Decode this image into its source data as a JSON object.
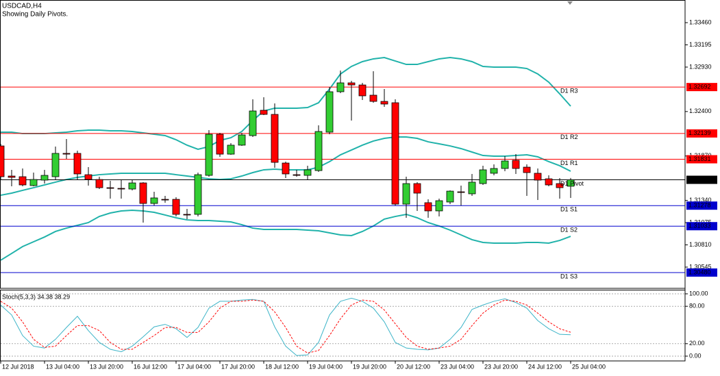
{
  "chart_data": [
    {
      "type": "candlestick",
      "title": "USDCAD,H4",
      "subtitle": "Showing Daily Pivots.",
      "categories": [
        "12 Jul 2018",
        null,
        null,
        null,
        "13 Jul 04:00",
        null,
        null,
        null,
        "13 Jul 20:00",
        null,
        null,
        null,
        "16 Jul 12:00",
        null,
        null,
        null,
        "17 Jul 04:00",
        null,
        null,
        null,
        "17 Jul 20:00",
        null,
        null,
        null,
        "18 Jul 12:00",
        null,
        null,
        null,
        "19 Jul 04:00",
        null,
        null,
        null,
        "19 Jul 20:00",
        null,
        null,
        null,
        "20 Jul 12:00",
        null,
        null,
        null,
        "23 Jul 04:00",
        null,
        null,
        null,
        "23 Jul 20:00",
        null,
        null,
        null,
        "24 Jul 12:00",
        null,
        null,
        null,
        "25 Jul 04:00"
      ],
      "open": [
        1.3199,
        1.31631,
        1.31623,
        1.31517,
        1.31582,
        1.31623,
        1.31901,
        1.31901,
        1.31647,
        1.3159,
        1.31492,
        1.31484,
        1.31476,
        1.31549,
        1.31304,
        1.31353,
        1.31353,
        1.31174,
        1.31174,
        1.31639,
        1.32129,
        1.31892,
        1.31999,
        1.32113,
        1.32415,
        1.32366,
        1.31786,
        1.31647,
        1.31639,
        1.31696,
        1.32154,
        1.32636,
        1.32742,
        1.32717,
        1.32595,
        1.32521,
        1.32505,
        1.31296,
        1.31541,
        1.31313,
        1.31215,
        1.31321,
        1.31443,
        1.31419,
        1.31541,
        1.31664,
        1.31721,
        1.31819,
        1.31737,
        1.31664,
        1.31598,
        1.31541,
        1.31509
      ],
      "high": [
        1.32015,
        1.31705,
        1.31721,
        1.31672,
        1.31705,
        1.31982,
        1.32072,
        1.31933,
        1.31737,
        1.31623,
        1.31574,
        1.3159,
        1.3159,
        1.31558,
        1.31443,
        1.31394,
        1.31378,
        1.31239,
        1.31672,
        1.32178,
        1.32146,
        1.32023,
        1.32146,
        1.32546,
        1.3257,
        1.32497,
        1.31803,
        1.31705,
        1.31754,
        1.32235,
        1.32693,
        1.32889,
        1.32766,
        1.32742,
        1.32881,
        1.32668,
        1.32546,
        1.31623,
        1.31558,
        1.31353,
        1.31362,
        1.3146,
        1.31517,
        1.31656,
        1.31754,
        1.3177,
        1.31868,
        1.31892,
        1.3177,
        1.31721,
        1.31639,
        1.31607,
        1.31608
      ],
      "low": [
        1.3159,
        1.31509,
        1.31509,
        1.31509,
        1.31541,
        1.3159,
        1.31835,
        1.3159,
        1.31517,
        1.31476,
        1.31362,
        1.31362,
        1.3146,
        1.31076,
        1.3128,
        1.31313,
        1.31149,
        1.31117,
        1.31149,
        1.31623,
        1.3186,
        1.31884,
        1.3199,
        1.32097,
        1.32358,
        1.31729,
        1.31607,
        1.31623,
        1.3159,
        1.3168,
        1.32129,
        1.32619,
        1.32293,
        1.32538,
        1.32505,
        1.32456,
        1.3128,
        1.31133,
        1.31215,
        1.31133,
        1.31149,
        1.31296,
        1.3128,
        1.31394,
        1.31525,
        1.31639,
        1.31688,
        1.31656,
        1.31394,
        1.31345,
        1.31509,
        1.31362,
        1.3137
      ],
      "close": [
        1.31623,
        1.31615,
        1.31525,
        1.3159,
        1.31639,
        1.31901,
        1.31892,
        1.31656,
        1.3159,
        1.31492,
        1.31484,
        1.31476,
        1.31549,
        1.31304,
        1.3137,
        1.31345,
        1.31174,
        1.31166,
        1.31647,
        1.32129,
        1.31892,
        1.31999,
        1.32121,
        1.32407,
        1.32366,
        1.31794,
        1.31656,
        1.31639,
        1.31705,
        1.32162,
        1.32636,
        1.32742,
        1.32717,
        1.32587,
        1.32521,
        1.32489,
        1.31296,
        1.31541,
        1.31427,
        1.31215,
        1.31337,
        1.31451,
        1.31435,
        1.31558,
        1.31705,
        1.31721,
        1.31811,
        1.31721,
        1.31672,
        1.31582,
        1.31525,
        1.31492,
        1.31586
      ],
      "up_color": "#32cd32",
      "down_color": "#ff0000",
      "series": [
        {
          "color": "#20b2aa",
          "values": [
            1.32154,
            1.32154,
            1.32137,
            1.32137,
            1.32137,
            1.32146,
            1.32154,
            1.3217,
            1.32178,
            1.32178,
            1.3217,
            1.3217,
            1.32162,
            1.32146,
            1.32129,
            1.32113,
            1.32064,
            1.31999,
            1.3195,
            1.31982,
            1.32056,
            1.32088,
            1.32162,
            1.32293,
            1.32407,
            1.3244,
            1.3244,
            1.3244,
            1.32448,
            1.32505,
            1.32668,
            1.32848,
            1.32938,
            1.32995,
            1.33028,
            1.33044,
            1.33003,
            1.32962,
            1.32962,
            1.32995,
            1.33028,
            1.33044,
            1.33028,
            1.32995,
            1.32938,
            1.3293,
            1.3293,
            1.3293,
            1.32913,
            1.32848,
            1.3275,
            1.32611,
            1.32464
          ]
        },
        {
          "color": "#20b2aa",
          "values": [
            1.31402,
            1.31427,
            1.3146,
            1.31492,
            1.31525,
            1.31558,
            1.3159,
            1.31615,
            1.31631,
            1.31647,
            1.31656,
            1.31664,
            1.31664,
            1.31664,
            1.31664,
            1.31664,
            1.31647,
            1.31631,
            1.31615,
            1.31598,
            1.3159,
            1.31598,
            1.31631,
            1.31672,
            1.31705,
            1.31713,
            1.31705,
            1.31705,
            1.31705,
            1.31737,
            1.31803,
            1.31884,
            1.31941,
            1.31999,
            1.32048,
            1.3208,
            1.32097,
            1.32097,
            1.3208,
            1.32039,
            1.32015,
            1.3199,
            1.31958,
            1.31917,
            1.31876,
            1.31868,
            1.31868,
            1.31876,
            1.31884,
            1.3186,
            1.31803,
            1.31754,
            1.31688
          ]
        },
        {
          "color": "#20b2aa",
          "values": [
            1.30627,
            1.30708,
            1.3079,
            1.30847,
            1.30904,
            1.3097,
            1.3101,
            1.31043,
            1.31076,
            1.31149,
            1.3119,
            1.31215,
            1.31223,
            1.31215,
            1.31198,
            1.31166,
            1.31133,
            1.31108,
            1.311,
            1.311,
            1.31092,
            1.31084,
            1.31051,
            1.3101,
            1.30994,
            1.30994,
            1.30994,
            1.30994,
            1.30986,
            1.30978,
            1.30953,
            1.30929,
            1.30921,
            1.3097,
            1.31035,
            1.31117,
            1.31149,
            1.31174,
            1.31133,
            1.31076,
            1.31035,
            1.30986,
            1.30929,
            1.30872,
            1.30839,
            1.30831,
            1.30831,
            1.30831,
            1.30839,
            1.30839,
            1.30831,
            1.30863,
            1.30912
          ]
        }
      ],
      "levels": [
        {
          "name": "D1 R3",
          "value": 1.32692,
          "price_label": "1.32692",
          "color": "#ff0000"
        },
        {
          "name": "D1 R2",
          "value": 1.32139,
          "price_label": "1.32139",
          "color": "#ff0000"
        },
        {
          "name": "D1 R1",
          "value": 1.31831,
          "price_label": "1.31831",
          "color": "#ff0000"
        },
        {
          "name": "D1 Pivot",
          "value": 1.31586,
          "price_label": "1.31586",
          "color": "#000000"
        },
        {
          "name": "D1 S1",
          "value": 1.31278,
          "price_label": "1.31278",
          "color": "#0000cd"
        },
        {
          "name": "D1 S2",
          "value": 1.31033,
          "price_label": "1.31033",
          "color": "#0000cd"
        },
        {
          "name": "D1 S3",
          "value": 1.3048,
          "price_label": "1.30480",
          "color": "#0000cd"
        }
      ],
      "ylim": [
        1.303,
        1.3373
      ],
      "yticks": [
        {
          "value": 1.3346,
          "label": "1.33460"
        },
        {
          "value": 1.33195,
          "label": "1.33195"
        },
        {
          "value": 1.3293,
          "label": "1.32930"
        },
        {
          "value": 1.324,
          "label": "1.32400"
        },
        {
          "value": 1.3187,
          "label": "1.31870"
        },
        {
          "value": 1.3134,
          "label": "1.31340"
        },
        {
          "value": 1.31075,
          "label": "1.31075"
        },
        {
          "value": 1.3081,
          "label": "1.30810"
        },
        {
          "value": 1.30545,
          "label": "1.30545"
        }
      ]
    },
    {
      "type": "line",
      "title": "Stoch(5,3,3) 34.38 38.29",
      "series": [
        {
          "color": "#3cb4c8",
          "style": "solid",
          "values": [
            82,
            66,
            33,
            16,
            13,
            27,
            46,
            64,
            41,
            22,
            11,
            7,
            16,
            31,
            47,
            51,
            44,
            30,
            46,
            77,
            88,
            88,
            90,
            91,
            88,
            47,
            16,
            1,
            2,
            22,
            66,
            88,
            93,
            88,
            77,
            55,
            22,
            13,
            11,
            10,
            13,
            27,
            46,
            75,
            82,
            88,
            92,
            86,
            77,
            57,
            44,
            35,
            34.38
          ]
        },
        {
          "color": "#ff0000",
          "style": "dashed",
          "values": [
            88,
            77,
            55,
            27,
            14,
            16,
            33,
            49,
            49,
            41,
            22,
            11,
            11,
            22,
            33,
            46,
            46,
            38,
            38,
            55,
            77,
            88,
            88,
            90,
            88,
            71,
            46,
            16,
            5,
            9,
            33,
            60,
            82,
            90,
            88,
            74,
            52,
            30,
            16,
            11,
            13,
            16,
            27,
            49,
            69,
            82,
            90,
            88,
            82,
            69,
            55,
            44,
            38.29
          ]
        }
      ],
      "ylim": [
        0,
        100
      ],
      "yticks": [
        {
          "value": 100,
          "label": "100.00"
        },
        {
          "value": 80,
          "label": "80.00"
        },
        {
          "value": 20,
          "label": "20.00"
        },
        {
          "value": 0,
          "label": "0.00"
        }
      ]
    }
  ]
}
